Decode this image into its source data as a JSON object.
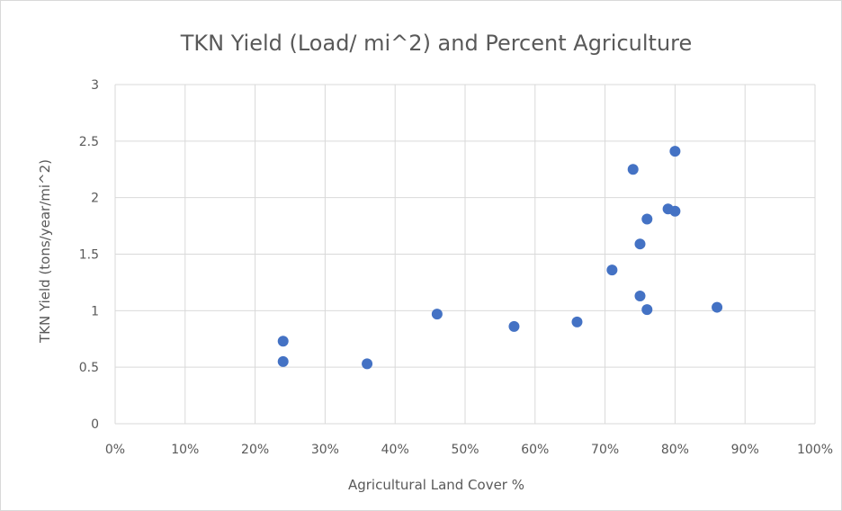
{
  "chart_data": {
    "type": "scatter",
    "title": "TKN Yield (Load/ mi^2) and Percent Agriculture",
    "xlabel": "Agricultural Land Cover %",
    "ylabel": "TKN Yield (tons/year/mi^2)",
    "xlim": [
      0,
      1
    ],
    "ylim": [
      0,
      3
    ],
    "x_ticks": [
      0,
      0.1,
      0.2,
      0.3,
      0.4,
      0.5,
      0.6,
      0.7,
      0.8,
      0.9,
      1.0
    ],
    "x_tick_labels": [
      "0%",
      "10%",
      "20%",
      "30%",
      "40%",
      "50%",
      "60%",
      "70%",
      "80%",
      "90%",
      "100%"
    ],
    "y_ticks": [
      0,
      0.5,
      1,
      1.5,
      2,
      2.5,
      3
    ],
    "y_tick_labels": [
      "0",
      "0.5",
      "1",
      "1.5",
      "2",
      "2.5",
      "3"
    ],
    "grid": true,
    "legend": "none",
    "marker_color": "#4472c4",
    "series": [
      {
        "points": [
          {
            "x": 0.24,
            "y": 0.73
          },
          {
            "x": 0.24,
            "y": 0.55
          },
          {
            "x": 0.36,
            "y": 0.53
          },
          {
            "x": 0.46,
            "y": 0.97
          },
          {
            "x": 0.57,
            "y": 0.86
          },
          {
            "x": 0.66,
            "y": 0.9
          },
          {
            "x": 0.71,
            "y": 1.36
          },
          {
            "x": 0.74,
            "y": 2.25
          },
          {
            "x": 0.75,
            "y": 1.59
          },
          {
            "x": 0.75,
            "y": 1.13
          },
          {
            "x": 0.76,
            "y": 1.81
          },
          {
            "x": 0.76,
            "y": 1.01
          },
          {
            "x": 0.79,
            "y": 1.9
          },
          {
            "x": 0.8,
            "y": 2.41
          },
          {
            "x": 0.8,
            "y": 1.88
          },
          {
            "x": 0.86,
            "y": 1.03
          }
        ]
      }
    ]
  }
}
